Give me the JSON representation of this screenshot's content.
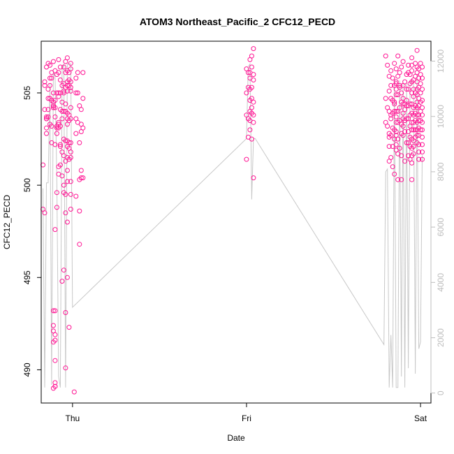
{
  "chart_data": {
    "type": "scatter",
    "title": "ATOM3 Northeast_Pacific_2 CFC12_PECD",
    "xlabel": "Date",
    "ylabel": "CFC12_PECD",
    "x_tick_labels": [
      "Thu",
      "Fri",
      "Sat"
    ],
    "y_ticks": [
      490,
      495,
      500,
      505
    ],
    "y2_ticks": [
      0,
      2000,
      4000,
      6000,
      8000,
      10000,
      12000
    ],
    "xlim": [
      -0.18,
      2.06
    ],
    "ylim": [
      488.2,
      507.8
    ],
    "y2lim": [
      -360,
      12720
    ],
    "colors": {
      "points": "#ff1493",
      "secondary_line": "#c8c8c8",
      "secondary_axis": "#bdbdbd"
    },
    "series": [
      {
        "kind": "points",
        "x": [
          -0.17,
          -0.17,
          -0.16,
          -0.16,
          -0.16,
          -0.16,
          -0.15,
          -0.15,
          -0.15,
          -0.15,
          -0.15,
          -0.15,
          -0.14,
          -0.14,
          -0.14,
          -0.14,
          -0.14,
          -0.13,
          -0.13,
          -0.13,
          -0.13,
          -0.13,
          -0.12,
          -0.12,
          -0.12,
          -0.12,
          -0.12,
          -0.11,
          -0.11,
          -0.11,
          -0.11,
          -0.11,
          -0.11,
          -0.11,
          -0.11,
          -0.11,
          -0.11,
          -0.11,
          -0.1,
          -0.1,
          -0.1,
          -0.1,
          -0.1,
          -0.1,
          -0.1,
          -0.1,
          -0.1,
          -0.1,
          -0.1,
          -0.1,
          -0.1,
          -0.09,
          -0.09,
          -0.09,
          -0.09,
          -0.09,
          -0.09,
          -0.09,
          -0.08,
          -0.08,
          -0.08,
          -0.08,
          -0.08,
          -0.08,
          -0.08,
          -0.08,
          -0.08,
          -0.07,
          -0.07,
          -0.07,
          -0.07,
          -0.07,
          -0.07,
          -0.07,
          -0.07,
          -0.06,
          -0.06,
          -0.06,
          -0.06,
          -0.06,
          -0.06,
          -0.06,
          -0.05,
          -0.05,
          -0.05,
          -0.05,
          -0.05,
          -0.05,
          -0.05,
          -0.05,
          -0.05,
          -0.05,
          -0.04,
          -0.04,
          -0.04,
          -0.04,
          -0.04,
          -0.04,
          -0.04,
          -0.04,
          -0.04,
          -0.04,
          -0.04,
          -0.03,
          -0.03,
          -0.03,
          -0.03,
          -0.03,
          -0.03,
          -0.03,
          -0.03,
          -0.03,
          -0.03,
          -0.03,
          -0.03,
          -0.03,
          -0.03,
          -0.03,
          -0.03,
          -0.02,
          -0.02,
          -0.02,
          -0.02,
          -0.02,
          -0.02,
          -0.02,
          -0.02,
          -0.02,
          -0.01,
          -0.01,
          -0.01,
          -0.01,
          -0.01,
          -0.01,
          -0.01,
          -0.01,
          -0.01,
          -0.01,
          -0.01,
          -0.01,
          -0.01,
          0.01,
          0.02,
          0.02,
          0.02,
          0.02,
          0.02,
          0.03,
          0.03,
          0.03,
          0.04,
          0.04,
          0.04,
          0.04,
          0.04,
          0.05,
          0.05,
          0.05,
          0.05,
          0.05,
          0.06,
          0.06,
          0.06,
          0.06,
          1.0,
          1.0,
          1.0,
          1.0,
          1.01,
          1.01,
          1.01,
          1.01,
          1.02,
          1.02,
          1.02,
          1.02,
          1.02,
          1.02,
          1.02,
          1.02,
          1.03,
          1.03,
          1.03,
          1.03,
          1.03,
          1.03,
          1.03,
          1.04,
          1.04,
          1.04,
          1.04,
          1.04,
          1.04,
          1.04,
          1.8,
          1.8,
          1.8,
          1.81,
          1.81,
          1.81,
          1.82,
          1.82,
          1.82,
          1.82,
          1.82,
          1.82,
          1.82,
          1.83,
          1.83,
          1.83,
          1.83,
          1.83,
          1.83,
          1.83,
          1.84,
          1.84,
          1.84,
          1.84,
          1.84,
          1.84,
          1.85,
          1.85,
          1.85,
          1.85,
          1.85,
          1.85,
          1.85,
          1.85,
          1.86,
          1.86,
          1.86,
          1.86,
          1.86,
          1.86,
          1.86,
          1.86,
          1.86,
          1.86,
          1.86,
          1.86,
          1.87,
          1.87,
          1.87,
          1.87,
          1.87,
          1.87,
          1.87,
          1.87,
          1.88,
          1.88,
          1.88,
          1.88,
          1.88,
          1.88,
          1.89,
          1.89,
          1.89,
          1.89,
          1.89,
          1.89,
          1.89,
          1.9,
          1.9,
          1.9,
          1.9,
          1.9,
          1.9,
          1.9,
          1.9,
          1.91,
          1.91,
          1.91,
          1.91,
          1.91,
          1.91,
          1.92,
          1.92,
          1.92,
          1.92,
          1.92,
          1.92,
          1.93,
          1.93,
          1.93,
          1.93,
          1.93,
          1.93,
          1.93,
          1.93,
          1.94,
          1.94,
          1.94,
          1.94,
          1.94,
          1.94,
          1.94,
          1.94,
          1.95,
          1.95,
          1.95,
          1.95,
          1.95,
          1.95,
          1.95,
          1.95,
          1.95,
          1.95,
          1.95,
          1.95,
          1.95,
          1.95,
          1.96,
          1.96,
          1.96,
          1.96,
          1.96,
          1.96,
          1.96,
          1.96,
          1.96,
          1.96,
          1.97,
          1.97,
          1.97,
          1.97,
          1.97,
          1.97,
          1.97,
          1.97,
          1.98,
          1.98,
          1.98,
          1.98,
          1.98,
          1.98,
          1.98,
          1.98,
          1.98,
          1.98,
          1.98,
          1.98,
          1.98,
          1.99,
          1.99,
          1.99,
          1.99,
          1.99,
          1.99,
          1.99,
          1.99,
          1.99,
          1.99,
          1.99,
          1.99,
          2.0,
          2.0,
          2.0,
          2.0,
          2.0,
          2.0,
          2.0,
          2.0,
          2.01,
          2.01,
          2.01,
          2.01,
          2.01,
          2.01,
          2.01,
          2.01,
          2.01,
          2.01,
          2.01,
          2.01
        ],
        "y": [
          501.1,
          498.7,
          498.5,
          505.6,
          505.4,
          504.1,
          506.4,
          503.7,
          503.6,
          503.6,
          503.1,
          502.8,
          506.6,
          505.2,
          504.7,
          504.1,
          503.7,
          506.5,
          505.8,
          505.4,
          504.7,
          503.3,
          506.1,
          505.8,
          504.6,
          503.2,
          502.3,
          506.7,
          505.0,
          504.5,
          504.3,
          504.3,
          504.2,
          493.2,
          492.4,
          492.1,
          491.5,
          489.0,
          506.2,
          504.6,
          504.2,
          503.7,
          502.2,
          497.6,
          493.2,
          491.9,
          491.6,
          490.5,
          489.3,
          489.1,
          489.1,
          506.0,
          505.0,
          503.2,
          503.1,
          502.8,
          499.6,
          498.8,
          506.8,
          506.1,
          505.0,
          504.8,
          503.4,
          503.3,
          503.1,
          501.0,
          500.6,
          506.4,
          505.7,
          505.0,
          504.1,
          503.2,
          502.2,
          502.1,
          501.1,
          505.4,
          504.5,
          504.0,
          503.6,
          501.8,
          500.5,
          494.8,
          506.4,
          505.5,
          505.1,
          505.0,
          504.0,
          502.5,
          501.6,
          500.0,
          499.6,
          495.4,
          506.7,
          506.1,
          505.3,
          504.4,
          504.0,
          502.4,
          501.3,
          499.5,
          498.5,
          493.1,
          490.1,
          506.9,
          506.2,
          505.6,
          505.4,
          505.4,
          505.1,
          503.9,
          503.6,
          503.3,
          502.4,
          502.1,
          501.5,
          500.8,
          500.2,
          498.0,
          495.0,
          506.1,
          505.7,
          505.4,
          503.8,
          503.5,
          502.3,
          502.0,
          501.4,
          492.3,
          506.6,
          506.3,
          505.6,
          505.3,
          505.1,
          504.2,
          503.6,
          502.3,
          501.8,
          501.5,
          500.2,
          499.5,
          498.7,
          488.8,
          505.8,
          505.0,
          503.6,
          502.8,
          499.4,
          506.1,
          505.0,
          503.4,
          504.3,
          502.3,
          500.3,
          498.6,
          496.8,
          504.1,
          503.3,
          502.9,
          500.8,
          500.4,
          506.1,
          504.7,
          503.1,
          500.4,
          506.3,
          505.0,
          503.8,
          501.4,
          506.1,
          505.3,
          503.6,
          502.6,
          506.8,
          506.1,
          505.8,
          505.2,
          504.6,
          504.0,
          503.5,
          503.0,
          507.0,
          506.4,
          505.3,
          504.7,
          504.2,
          503.9,
          502.5,
          507.4,
          506.0,
          505.7,
          504.5,
          503.8,
          503.4,
          500.4,
          507.0,
          504.7,
          503.4,
          506.5,
          504.2,
          503.2,
          505.9,
          505.1,
          504.0,
          502.8,
          502.6,
          502.1,
          501.3,
          506.2,
          505.4,
          504.7,
          503.8,
          503.6,
          502.7,
          501.5,
          505.8,
          504.6,
          503.9,
          503.1,
          502.1,
          501.0,
          506.6,
          505.4,
          504.5,
          504.4,
          504.0,
          503.0,
          502.5,
          500.6,
          506.3,
          505.6,
          505.5,
          505.2,
          504.9,
          504.0,
          503.7,
          503.4,
          502.9,
          502.7,
          502.2,
          501.9,
          507.0,
          505.9,
          504.9,
          504.0,
          503.4,
          502.5,
          501.7,
          500.3,
          506.1,
          505.4,
          505.3,
          504.2,
          503.5,
          502.0,
          506.4,
          505.0,
          504.5,
          503.3,
          502.8,
          501.6,
          500.3,
          506.7,
          505.4,
          504.7,
          504.4,
          503.9,
          503.6,
          503.2,
          502.7,
          505.6,
          504.4,
          504.1,
          503.5,
          502.9,
          501.3,
          506.0,
          505.2,
          504.6,
          504.3,
          503.6,
          502.3,
          506.5,
          506.1,
          505.2,
          504.3,
          503.6,
          502.9,
          502.3,
          501.6,
          506.0,
          505.5,
          504.4,
          503.8,
          503.2,
          502.6,
          502.1,
          501.4,
          506.9,
          506.5,
          506.2,
          505.6,
          505.0,
          504.4,
          503.9,
          503.4,
          503.0,
          502.5,
          502.0,
          501.6,
          501.2,
          500.3,
          505.7,
          505.2,
          504.8,
          504.2,
          503.8,
          503.4,
          503.0,
          502.4,
          502.1,
          501.7,
          506.6,
          505.9,
          505.0,
          504.3,
          503.9,
          503.5,
          503.0,
          502.6,
          507.3,
          506.4,
          506.1,
          505.6,
          505.2,
          504.9,
          504.5,
          504.2,
          503.8,
          503.4,
          503.0,
          502.7,
          502.3,
          506.3,
          505.8,
          505.3,
          504.7,
          504.3,
          503.8,
          503.5,
          503.1,
          502.7,
          502.2,
          501.8,
          501.4,
          506.6,
          506.0,
          505.5,
          505.0,
          504.5,
          504.0,
          503.5,
          503.0,
          506.4,
          505.8,
          505.2,
          504.6,
          504.2,
          503.8,
          503.4,
          503.0,
          502.6,
          502.2,
          501.8,
          501.4
        ]
      },
      {
        "kind": "line",
        "axis": "secondary",
        "x": [
          -0.17,
          -0.16,
          -0.15,
          -0.14,
          -0.13,
          -0.12,
          -0.11,
          -0.1,
          -0.09,
          -0.08,
          -0.07,
          -0.06,
          -0.05,
          -0.04,
          -0.03,
          -0.02,
          -0.01,
          0.0,
          1.0,
          1.01,
          1.02,
          1.03,
          1.04,
          1.05,
          1.79,
          1.8,
          1.81,
          1.82,
          1.83,
          1.84,
          1.85,
          1.86,
          1.87,
          1.88,
          1.89,
          1.9,
          1.91,
          1.92,
          1.93,
          1.94,
          1.95,
          1.96,
          1.97,
          1.98,
          1.99,
          2.0,
          2.01
        ],
        "y": [
          7400,
          200,
          7600,
          7600,
          11200,
          300,
          11600,
          11400,
          7600,
          600,
          200,
          11700,
          11900,
          200,
          11900,
          11900,
          11900,
          3100,
          9200,
          11800,
          11900,
          7000,
          9200,
          9200,
          1750,
          8000,
          8100,
          200,
          2100,
          200,
          11400,
          200,
          200,
          11300,
          600,
          11200,
          200,
          11200,
          900,
          11200,
          11300,
          11200,
          700,
          11500,
          1600,
          1850,
          8600
        ]
      }
    ]
  }
}
